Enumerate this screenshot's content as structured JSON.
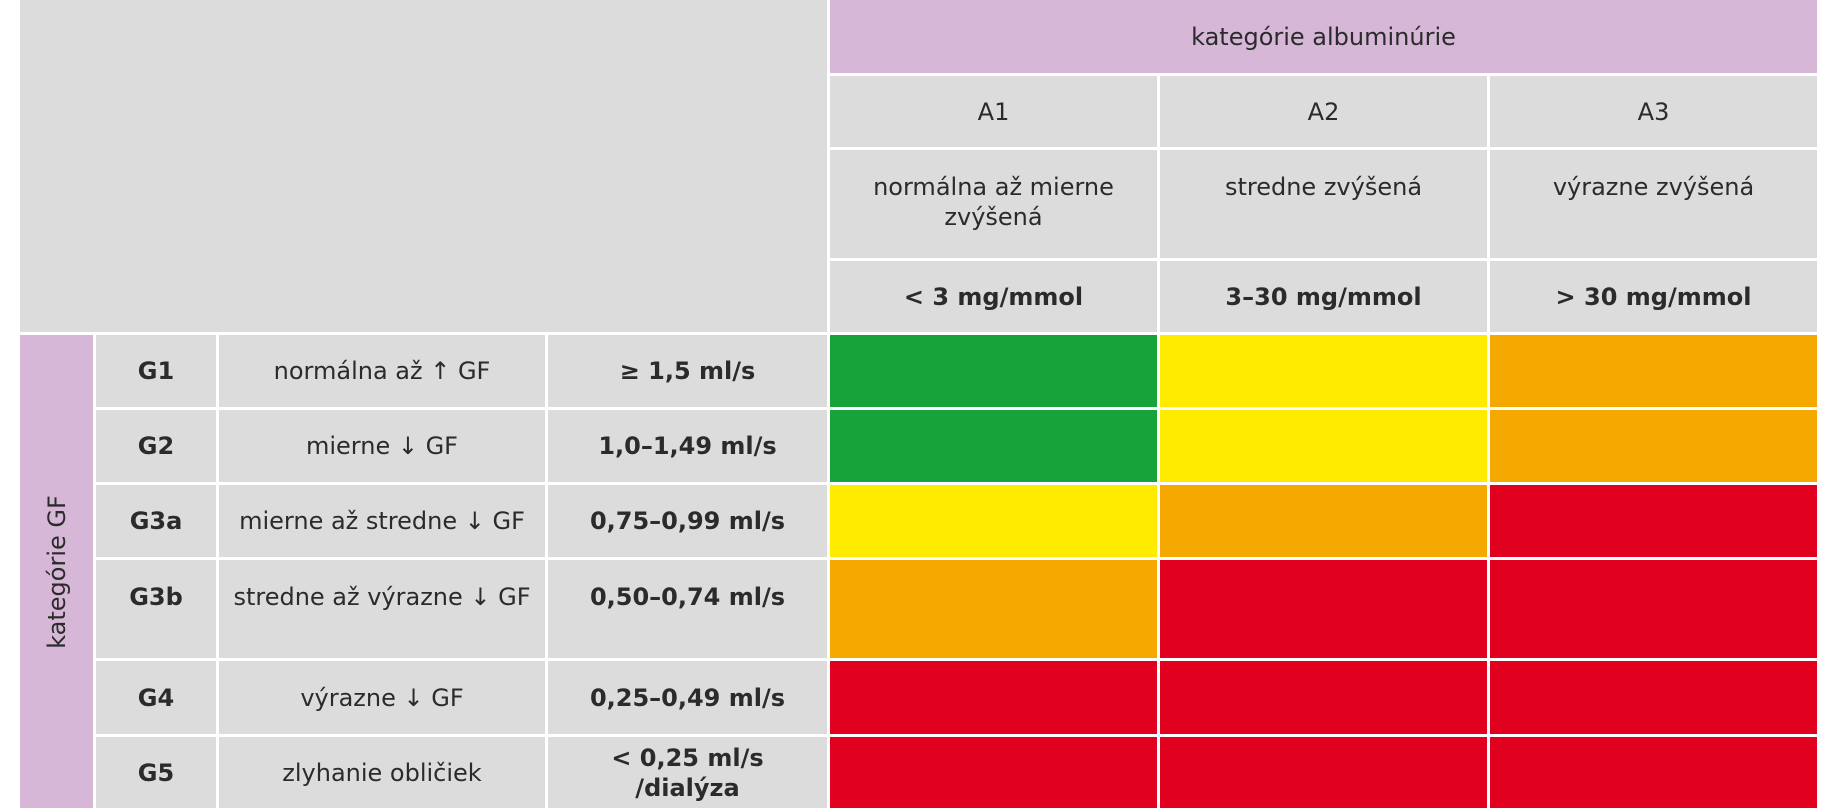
{
  "albuminuria": {
    "heading": "kategórie albuminúrie",
    "columns": [
      {
        "code": "A1",
        "description": "normálna až mierne zvýšená",
        "range": "< 3 mg/mmol"
      },
      {
        "code": "A2",
        "description": "stredne zvýšená",
        "range": "3–30 mg/mmol"
      },
      {
        "code": "A3",
        "description": "výrazne zvýšená",
        "range": "> 30 mg/mmol"
      }
    ]
  },
  "gf": {
    "heading": "kategórie GF",
    "rows": [
      {
        "code": "G1",
        "description": "normálna až ↑ GF",
        "range": "≥ 1,5 ml/s"
      },
      {
        "code": "G2",
        "description": "mierne ↓ GF",
        "range": "1,0–1,49 ml/s"
      },
      {
        "code": "G3a",
        "description": "mierne až stredne ↓ GF",
        "range": "0,75–0,99 ml/s"
      },
      {
        "code": "G3b",
        "description": "stredne až výrazne ↓ GF",
        "range": "0,50–0,74 ml/s"
      },
      {
        "code": "G4",
        "description": "výrazne ↓ GF",
        "range": "0,25–0,49 ml/s"
      },
      {
        "code": "G5",
        "description": "zlyhanie obličiek",
        "range": "< 0,25 ml/s /dialýza"
      }
    ]
  },
  "risk_colors": {
    "green": "#18a33a",
    "yellow": "#ffeb00",
    "orange": "#f5a800",
    "red": "#e2001f"
  },
  "risk_matrix": [
    [
      "green",
      "yellow",
      "orange"
    ],
    [
      "green",
      "yellow",
      "orange"
    ],
    [
      "yellow",
      "orange",
      "red"
    ],
    [
      "orange",
      "red",
      "red"
    ],
    [
      "red",
      "red",
      "red"
    ],
    [
      "red",
      "red",
      "red"
    ]
  ]
}
